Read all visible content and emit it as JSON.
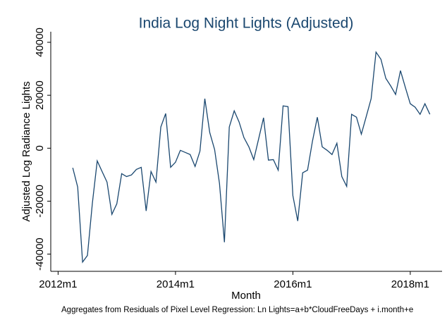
{
  "chart_data": {
    "type": "line",
    "title": "India Log Night Lights (Adjusted)",
    "x_label": "Month",
    "y_label": "Adjusted Log Radiance Lights",
    "note": "Aggregates from Residuals of Pixel Level Regression: Ln Lights=a+b*CloudFreeDays + i.month+e",
    "x": [
      627,
      628,
      629,
      630,
      631,
      632,
      633,
      634,
      635,
      636,
      637,
      638,
      639,
      640,
      641,
      642,
      643,
      644,
      645,
      646,
      647,
      648,
      649,
      650,
      651,
      652,
      653,
      654,
      655,
      656,
      657,
      658,
      659,
      660,
      661,
      662,
      663,
      664,
      665,
      666,
      667,
      668,
      669,
      670,
      671,
      672,
      673,
      674,
      675,
      676,
      677,
      678,
      679,
      680,
      681,
      682,
      683,
      684,
      685,
      686,
      687,
      688,
      689,
      690,
      691,
      692,
      693,
      694,
      695,
      696,
      697,
      698,
      699,
      700
    ],
    "series": [
      {
        "name": "India",
        "color": "#1a476f",
        "values": [
          -7400,
          -14700,
          -43000,
          -40500,
          -20800,
          -4800,
          -8800,
          -12800,
          -25000,
          -21000,
          -9600,
          -10700,
          -10100,
          -8000,
          -7200,
          -23700,
          -8800,
          -12800,
          8000,
          13100,
          -7200,
          -5300,
          -800,
          -1600,
          -2400,
          -6900,
          -1100,
          18700,
          5900,
          -500,
          -13300,
          -35500,
          8000,
          14100,
          9900,
          4000,
          500,
          -4300,
          3500,
          11500,
          -4500,
          -4300,
          -8300,
          16000,
          15700,
          -17900,
          -27500,
          -9300,
          -8300,
          2700,
          11700,
          500,
          -800,
          -2400,
          1900,
          -10700,
          -14400,
          12800,
          11700,
          5300,
          12000,
          18700,
          36300,
          33600,
          26400,
          23500,
          20300,
          29300,
          22900,
          16800,
          15500,
          12800,
          16800,
          12800
        ]
      }
    ],
    "xlim": [
      622.5,
      702.5
    ],
    "xticks": [
      {
        "value": 624,
        "label": "2012m1"
      },
      {
        "value": 648,
        "label": "2014m1"
      },
      {
        "value": 672,
        "label": "2016m1"
      },
      {
        "value": 696,
        "label": "2018m1"
      }
    ],
    "ylim": [
      -46500,
      44000
    ],
    "yticks": [
      -40000,
      -20000,
      0,
      20000,
      40000
    ],
    "grid": false
  }
}
